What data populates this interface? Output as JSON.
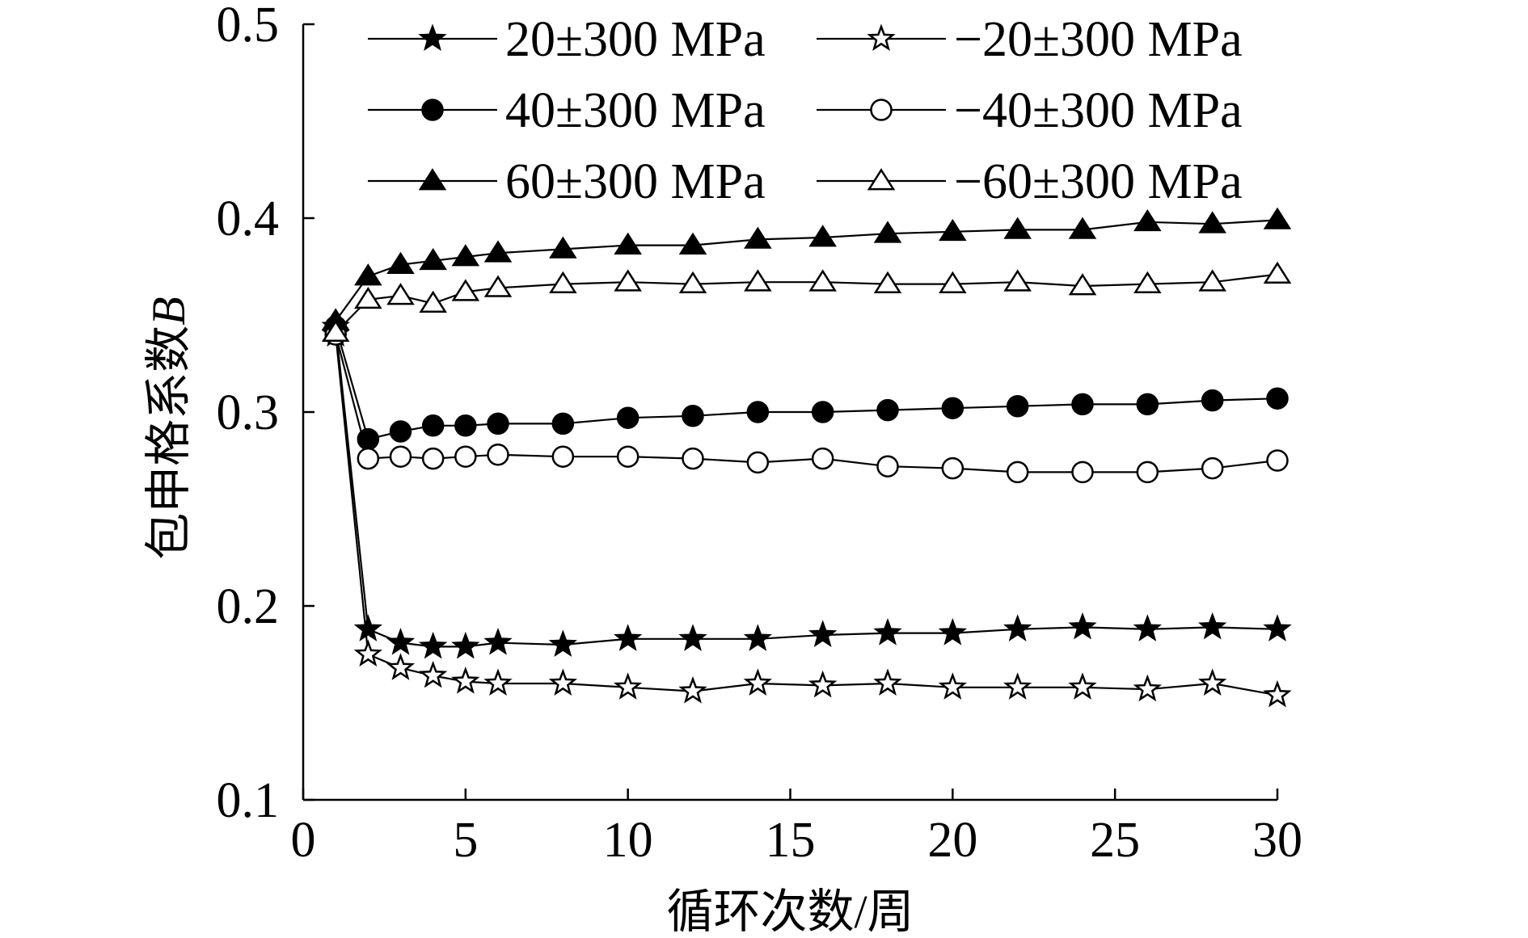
{
  "chart_data": {
    "type": "line",
    "xlabel": "循环次数/周",
    "ylabel_prefix": "包申格系数",
    "ylabel_var": "B",
    "xlim": [
      0,
      30
    ],
    "ylim": [
      0.1,
      0.5
    ],
    "xticks": [
      0,
      5,
      10,
      15,
      20,
      25,
      30
    ],
    "xtick_labels": [
      "0",
      "5",
      "10",
      "15",
      "20",
      "25",
      "30"
    ],
    "yticks": [
      0.1,
      0.2,
      0.3,
      0.4,
      0.5
    ],
    "ytick_labels": [
      "0.1",
      "0.2",
      "0.3",
      "0.4",
      "0.5"
    ],
    "grid": false,
    "legend_position": "top",
    "x": [
      1,
      2,
      3,
      4,
      5,
      6,
      8,
      10,
      12,
      14,
      16,
      18,
      20,
      22,
      24,
      26,
      28,
      30
    ],
    "series": [
      {
        "name": "20±300 MPa",
        "marker": "star",
        "fill": "filled",
        "values": [
          0.344,
          0.188,
          0.181,
          0.179,
          0.179,
          0.181,
          0.18,
          0.183,
          0.183,
          0.183,
          0.185,
          0.186,
          0.186,
          0.188,
          0.189,
          0.188,
          0.189,
          0.188
        ]
      },
      {
        "name": "−20±300 MPa",
        "marker": "star",
        "fill": "open",
        "values": [
          0.34,
          0.175,
          0.168,
          0.164,
          0.161,
          0.16,
          0.16,
          0.158,
          0.156,
          0.16,
          0.159,
          0.16,
          0.158,
          0.158,
          0.158,
          0.157,
          0.16,
          0.154
        ]
      },
      {
        "name": "40±300 MPa",
        "marker": "circle",
        "fill": "filled",
        "values": [
          0.344,
          0.286,
          0.29,
          0.293,
          0.293,
          0.294,
          0.294,
          0.297,
          0.298,
          0.3,
          0.3,
          0.301,
          0.302,
          0.303,
          0.304,
          0.304,
          0.306,
          0.307
        ]
      },
      {
        "name": "−40±300 MPa",
        "marker": "circle",
        "fill": "open",
        "values": [
          0.34,
          0.276,
          0.277,
          0.276,
          0.277,
          0.278,
          0.277,
          0.277,
          0.276,
          0.274,
          0.276,
          0.272,
          0.271,
          0.269,
          0.269,
          0.269,
          0.271,
          0.275
        ]
      },
      {
        "name": "60±300 MPa",
        "marker": "triangle",
        "fill": "filled",
        "values": [
          0.347,
          0.37,
          0.376,
          0.378,
          0.38,
          0.382,
          0.384,
          0.386,
          0.386,
          0.389,
          0.39,
          0.392,
          0.393,
          0.394,
          0.394,
          0.398,
          0.397,
          0.399
        ]
      },
      {
        "name": "−60±300 MPa",
        "marker": "triangle",
        "fill": "open",
        "values": [
          0.341,
          0.358,
          0.36,
          0.356,
          0.362,
          0.364,
          0.366,
          0.367,
          0.366,
          0.367,
          0.367,
          0.366,
          0.366,
          0.367,
          0.365,
          0.366,
          0.367,
          0.371
        ]
      }
    ]
  }
}
